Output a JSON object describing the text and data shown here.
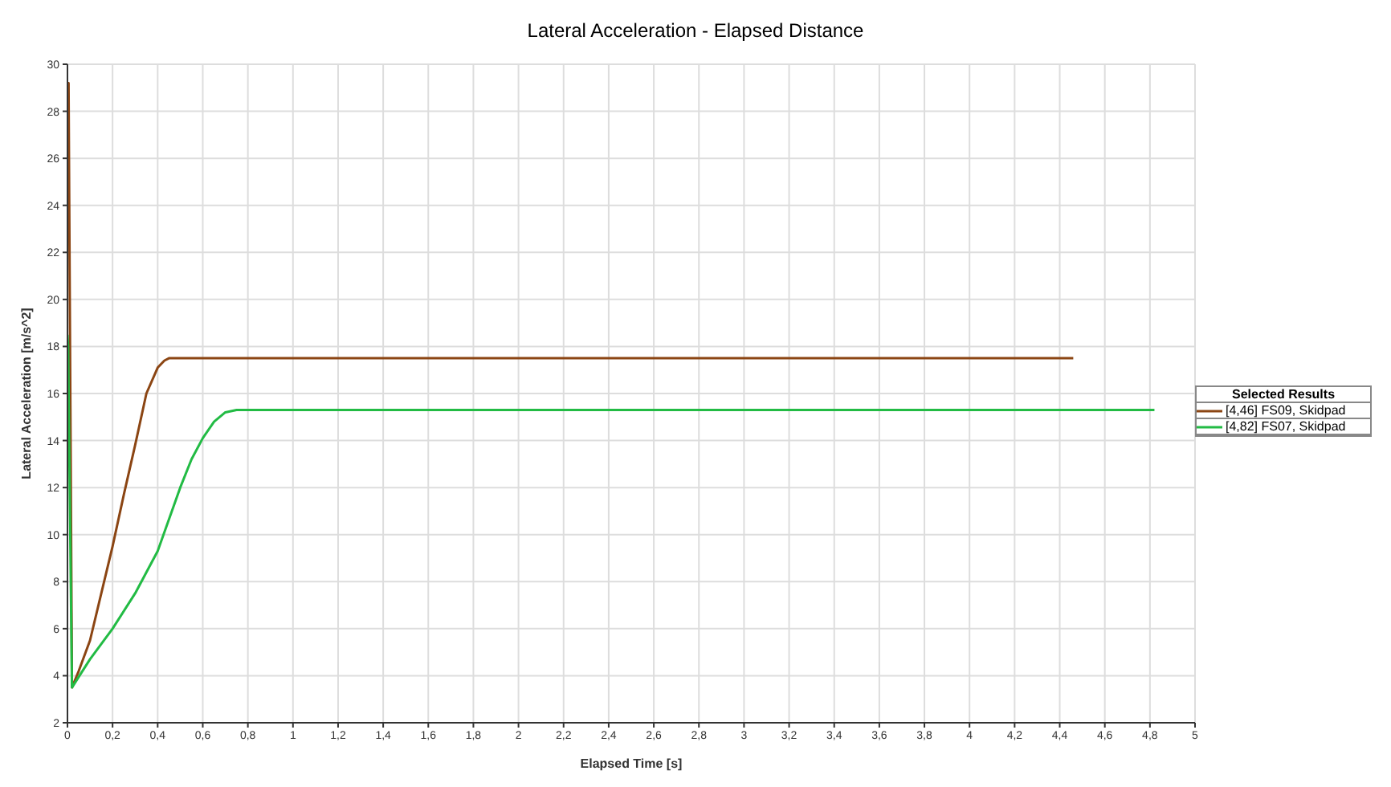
{
  "chart_data": {
    "type": "line",
    "title": "Lateral Acceleration - Elapsed Distance",
    "xlabel": "Elapsed Time [s]",
    "ylabel": "Lateral Acceleration [m/s^2]",
    "legend_title": "Selected Results",
    "series": [
      {
        "name": "[4,46] FS09, Skidpad",
        "color": "#8b4513",
        "x": [
          0,
          0.005,
          0.02,
          0.05,
          0.1,
          0.15,
          0.2,
          0.25,
          0.3,
          0.35,
          0.4,
          0.43,
          0.45,
          4.46
        ],
        "values": [
          29,
          29.2,
          3.5,
          4.2,
          5.5,
          7.5,
          9.5,
          11.7,
          13.8,
          16,
          17.1,
          17.4,
          17.5,
          17.5
        ]
      },
      {
        "name": "[4,82] FS07, Skidpad",
        "color": "#22bb44",
        "x": [
          0,
          0.003,
          0.02,
          0.1,
          0.2,
          0.3,
          0.4,
          0.5,
          0.55,
          0.6,
          0.65,
          0.7,
          0.75,
          4.82
        ],
        "values": [
          18.5,
          18,
          3.5,
          4.7,
          6.0,
          7.5,
          9.3,
          12.0,
          13.2,
          14.1,
          14.8,
          15.2,
          15.3,
          15.3
        ]
      }
    ],
    "xlim": [
      0,
      5
    ],
    "xticks": [
      0,
      {
        "value": 0.2,
        "label": "0,2"
      },
      {
        "value": 0.4,
        "label": "0,4"
      },
      {
        "value": 0.6,
        "label": "0,6"
      },
      {
        "value": 0.8,
        "label": "0,8"
      },
      1,
      {
        "value": 1.2,
        "label": "1,2"
      },
      {
        "value": 1.4,
        "label": "1,4"
      },
      {
        "value": 1.6,
        "label": "1,6"
      },
      {
        "value": 1.8,
        "label": "1,8"
      },
      2,
      {
        "value": 2.2,
        "label": "2,2"
      },
      {
        "value": 2.4,
        "label": "2,4"
      },
      {
        "value": 2.6,
        "label": "2,6"
      },
      {
        "value": 2.8,
        "label": "2,8"
      },
      3,
      {
        "value": 3.2,
        "label": "3,2"
      },
      {
        "value": 3.4,
        "label": "3,4"
      },
      {
        "value": 3.6,
        "label": "3,6"
      },
      {
        "value": 3.8,
        "label": "3,8"
      },
      4,
      {
        "value": 4.2,
        "label": "4,2"
      },
      {
        "value": 4.4,
        "label": "4,4"
      },
      {
        "value": 4.6,
        "label": "4,6"
      },
      {
        "value": 4.8,
        "label": "4,8"
      },
      5
    ],
    "ylim": [
      2,
      30
    ],
    "yticks": [
      2,
      4,
      6,
      8,
      10,
      12,
      14,
      16,
      18,
      20,
      22,
      24,
      26,
      28,
      30
    ],
    "grid": true,
    "legend": "right",
    "line_style": "solid",
    "marker": "none"
  }
}
